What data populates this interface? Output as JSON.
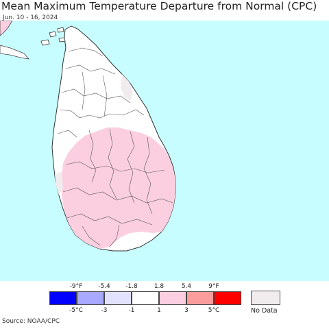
{
  "title": "Mean Maximum Temperature Departure from Normal (CPC)",
  "subtitle": "Jun. 10 - 16, 2024",
  "source": "Source: NOAA/CPC",
  "colors": {
    "ocean": "#c8fdff",
    "land_normal": "#ffffff",
    "land_warm": "#fbcfe0",
    "no_data": "#f0eced",
    "border": "#444444"
  },
  "legend": {
    "fahrenheit_ticks": [
      "-9°F",
      "-5.4",
      "-1.8",
      "1.8",
      "5.4",
      "9°F"
    ],
    "celsius_ticks": [
      "-5°C",
      "-3",
      "-1",
      "1",
      "3",
      "5°C"
    ],
    "bins": [
      {
        "color": "#0000ff"
      },
      {
        "color": "#a8a8ff"
      },
      {
        "color": "#e2e2ff"
      },
      {
        "color": "#ffffff"
      },
      {
        "color": "#fbcfe0"
      },
      {
        "color": "#fa9c9c"
      },
      {
        "color": "#ff0000"
      }
    ],
    "no_data_label": "No Data"
  }
}
